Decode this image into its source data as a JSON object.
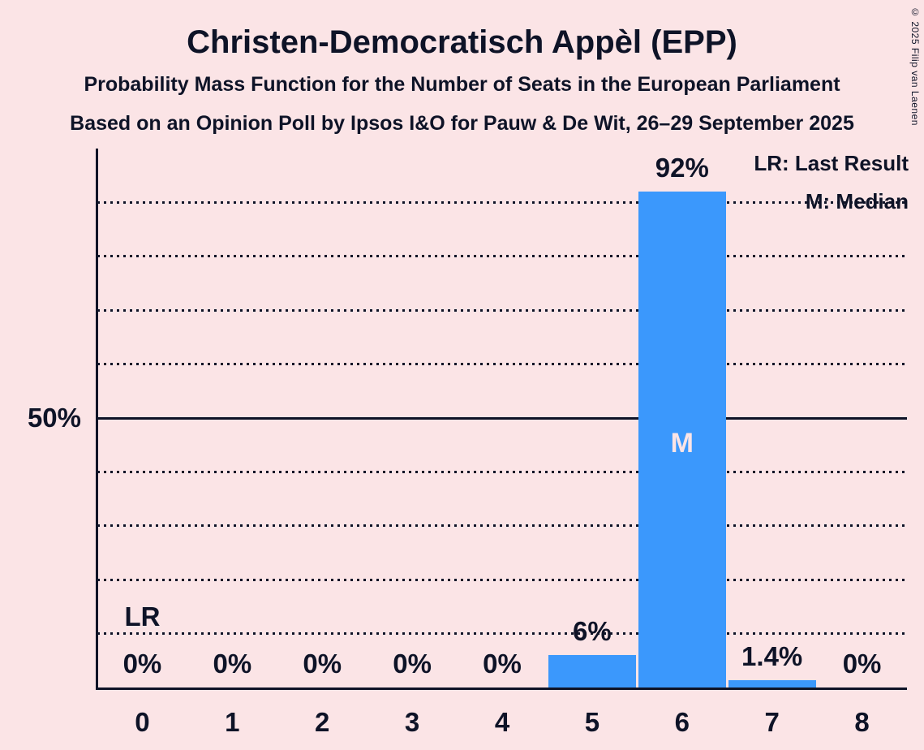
{
  "title": "Christen-Democratisch Appèl (EPP)",
  "subtitle1": "Probability Mass Function for the Number of Seats in the European Parliament",
  "subtitle2": "Based on an Opinion Poll by Ipsos I&O for Pauw & De Wit, 26–29 September 2025",
  "copyright": "© 2025 Filip van Laenen",
  "legend": {
    "lr": "LR: Last Result",
    "m": "M: Median"
  },
  "chart_data": {
    "type": "bar",
    "title": "Christen-Democratisch Appèl (EPP)",
    "categories": [
      "0",
      "1",
      "2",
      "3",
      "4",
      "5",
      "6",
      "7",
      "8"
    ],
    "values": [
      0,
      0,
      0,
      0,
      0,
      6,
      92,
      1.4,
      0
    ],
    "value_labels": [
      "0%",
      "0%",
      "0%",
      "0%",
      "0%",
      "6%",
      "92%",
      "1.4%",
      "0%"
    ],
    "ylim": [
      0,
      100
    ],
    "y_tick": {
      "value": 50,
      "label": "50%"
    },
    "solid_gridline_value": 50,
    "dotted_gridline_values": [
      10,
      20,
      30,
      40,
      60,
      70,
      80,
      90
    ],
    "grid": "horizontal",
    "legend_position": "top-right",
    "markers": {
      "last_result": {
        "category_index": 0,
        "label": "LR"
      },
      "median": {
        "category_index": 6,
        "label": "M"
      }
    },
    "colors": {
      "background": "#fbe4e6",
      "bar": "#3b98fc",
      "text": "#0e1327"
    }
  }
}
